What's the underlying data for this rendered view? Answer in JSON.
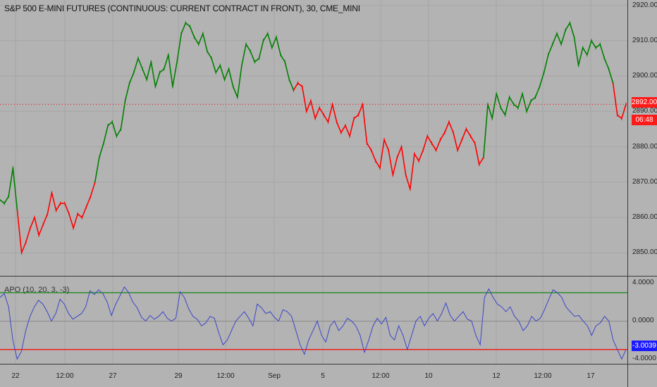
{
  "chart_data": [
    {
      "type": "line",
      "title": "S&P 500 E-MINI FUTURES (CONTINUOUS: CURRENT CONTRACT IN FRONT), 30, CME_MINI",
      "price_ticks": [
        "2920.00",
        "2910.00",
        "2900.00",
        "2890.00",
        "2880.00",
        "2870.00",
        "2860.00",
        "2850.00"
      ],
      "price_tick_values": [
        2920,
        2910,
        2900,
        2890,
        2880,
        2870,
        2860,
        2850
      ],
      "ylim": [
        2843.5,
        2921.5
      ],
      "x_ticks": [
        "22",
        "12:00",
        "27",
        "29",
        "12:00",
        "Sep",
        "5",
        "12:00",
        "10",
        "12",
        "12:00",
        "17"
      ],
      "last_price": "2892.00",
      "countdown": "06:48",
      "up_color": "#008000",
      "down_color": "#ff0000",
      "series": [
        {
          "values": [
            2865,
            2864,
            2866,
            2874,
            2862,
            2850,
            2853,
            2857,
            2860,
            2855,
            2858,
            2861,
            2867,
            2862,
            2864,
            2864,
            2861,
            2857,
            2861,
            2860,
            2863,
            2866,
            2870,
            2877,
            2881,
            2886,
            2887,
            2883,
            2885,
            2893,
            2898,
            2901,
            2905,
            2902,
            2899,
            2904,
            2897,
            2901,
            2902,
            2906,
            2897,
            2904,
            2912,
            2915,
            2914,
            2911,
            2909,
            2912,
            2907,
            2905,
            2901,
            2903,
            2899,
            2902,
            2897,
            2894,
            2903,
            2909,
            2907,
            2904,
            2905,
            2910,
            2912,
            2908,
            2911,
            2906,
            2904,
            2899,
            2896,
            2898,
            2897,
            2890,
            2893,
            2888,
            2891,
            2889,
            2887,
            2892,
            2887,
            2884,
            2886,
            2883,
            2888,
            2889,
            2892,
            2881,
            2879,
            2876,
            2874,
            2882,
            2879,
            2872,
            2877,
            2880,
            2872,
            2868,
            2878,
            2876,
            2879,
            2883,
            2881,
            2879,
            2882,
            2884,
            2887,
            2884,
            2879,
            2882,
            2885,
            2883,
            2881,
            2875,
            2877,
            2892,
            2888,
            2895,
            2891,
            2889,
            2894,
            2892,
            2891,
            2895,
            2890,
            2893,
            2894,
            2897,
            2901,
            2906,
            2909,
            2912,
            2909,
            2913,
            2915,
            2911,
            2903,
            2908,
            2906,
            2910,
            2908,
            2909,
            2905,
            2902,
            2898,
            2889,
            2888,
            2892
          ],
          "colors": [
            "G",
            "G",
            "G",
            "G",
            "G",
            "R",
            "R",
            "R",
            "R",
            "R",
            "R",
            "R",
            "R",
            "R",
            "R",
            "R",
            "R",
            "R",
            "R",
            "R",
            "R",
            "R",
            "R",
            "G",
            "G",
            "G",
            "G",
            "G",
            "G",
            "G",
            "G",
            "G",
            "G",
            "G",
            "G",
            "G",
            "G",
            "G",
            "G",
            "G",
            "G",
            "G",
            "G",
            "G",
            "G",
            "G",
            "G",
            "G",
            "G",
            "G",
            "G",
            "G",
            "G",
            "G",
            "G",
            "G",
            "G",
            "G",
            "G",
            "G",
            "G",
            "G",
            "G",
            "G",
            "G",
            "G",
            "G",
            "G",
            "G",
            "R",
            "R",
            "R",
            "R",
            "R",
            "R",
            "R",
            "R",
            "R",
            "R",
            "R",
            "R",
            "R",
            "R",
            "R",
            "R",
            "R",
            "R",
            "R",
            "R",
            "R",
            "R",
            "R",
            "R",
            "R",
            "R",
            "R",
            "R",
            "R",
            "R",
            "R",
            "R",
            "R",
            "R",
            "R",
            "R",
            "R",
            "R",
            "R",
            "R",
            "R",
            "R",
            "R",
            "R",
            "G",
            "G",
            "G",
            "G",
            "G",
            "G",
            "G",
            "G",
            "G",
            "G",
            "G",
            "G",
            "G",
            "G",
            "G",
            "G",
            "G",
            "G",
            "G",
            "G",
            "G",
            "G",
            "G",
            "G",
            "G",
            "G",
            "G",
            "G",
            "G",
            "G",
            "R",
            "R",
            "R"
          ]
        }
      ]
    },
    {
      "type": "line",
      "title": "APO (10, 20, 3, -3)",
      "ticks": [
        "4.0000",
        "0.0000",
        "-4.0000"
      ],
      "tick_values": [
        4,
        0,
        -4
      ],
      "ylim": [
        -4.5,
        4.7
      ],
      "upper_level": 3,
      "lower_level": -3,
      "last_value": "-3.0039",
      "line_color": "#3b46c8",
      "upper_color": "#008000",
      "lower_color": "#ff0000",
      "series": [
        {
          "values": [
            2.5,
            2.9,
            1.5,
            -2.0,
            -4.0,
            -3.2,
            -1.0,
            0.5,
            1.5,
            2.2,
            1.8,
            1.0,
            0.0,
            0.8,
            2.3,
            1.8,
            0.8,
            0.2,
            0.5,
            0.8,
            1.5,
            3.2,
            2.8,
            3.3,
            2.9,
            2.0,
            0.6,
            1.8,
            2.7,
            3.6,
            3.0,
            2.0,
            1.4,
            0.4,
            0.0,
            0.6,
            0.2,
            0.5,
            1.0,
            0.3,
            0.0,
            0.3,
            3.1,
            2.5,
            1.3,
            0.5,
            0.2,
            -0.5,
            -0.2,
            0.5,
            0.3,
            -1.2,
            -2.5,
            -2.0,
            -1.0,
            0.0,
            0.5,
            1.0,
            0.3,
            -0.5,
            1.8,
            1.4,
            0.8,
            1.0,
            0.4,
            0.0,
            1.2,
            1.0,
            0.5,
            -1.0,
            -2.5,
            -3.5,
            -2.0,
            -1.0,
            0.0,
            -1.5,
            -2.2,
            -0.5,
            0.0,
            -1.0,
            -0.5,
            0.3,
            0.0,
            -0.5,
            -1.5,
            -3.3,
            -2.0,
            -0.5,
            0.3,
            -0.3,
            0.4,
            -1.5,
            -2.0,
            -0.5,
            -1.5,
            -3.0,
            -1.5,
            0.0,
            0.5,
            -0.5,
            0.3,
            0.8,
            0.0,
            0.8,
            1.9,
            0.6,
            0.0,
            0.5,
            1.0,
            0.2,
            0.0,
            -1.5,
            -2.5,
            2.5,
            3.4,
            2.5,
            1.8,
            1.5,
            1.0,
            1.5,
            0.5,
            0.0,
            -1.0,
            -0.5,
            0.5,
            0.0,
            0.3,
            1.2,
            2.3,
            3.3,
            3.0,
            2.5,
            1.5,
            1.0,
            0.5,
            0.6,
            0.0,
            -0.5,
            -1.5,
            -0.5,
            -0.2,
            0.5,
            0.0,
            -2.0,
            -3.0,
            -4.0,
            -3.0
          ]
        }
      ]
    }
  ]
}
